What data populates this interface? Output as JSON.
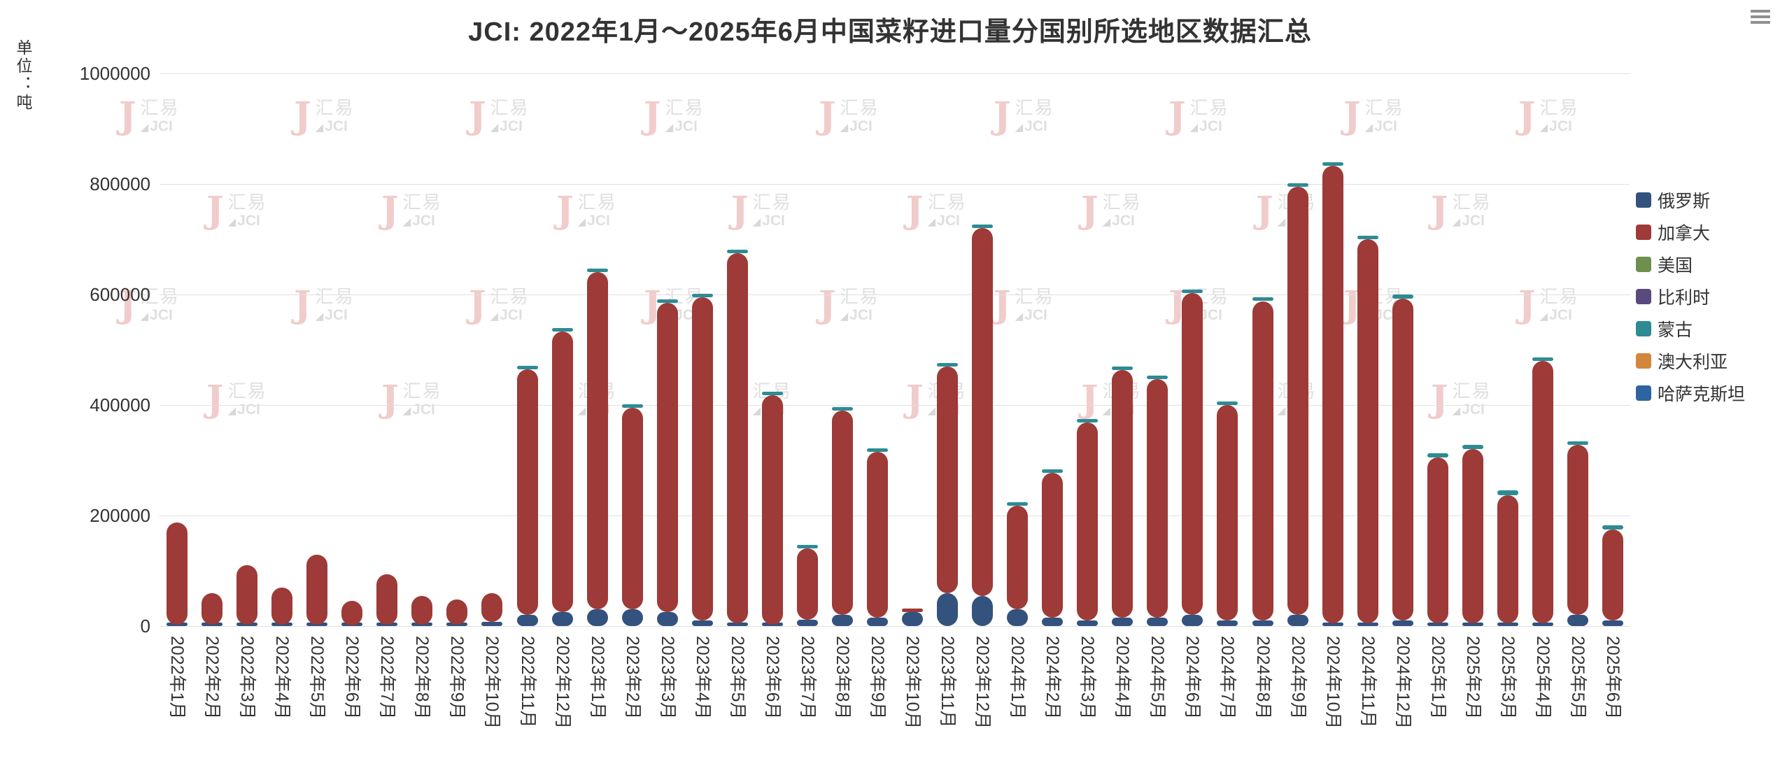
{
  "header": {
    "title": "JCI: 2022年1月～2025年6月中国菜籽进口量分国别所选地区数据汇总",
    "menu_icon": "hamburger-icon"
  },
  "y_axis": {
    "unit_label": "单位：吨"
  },
  "watermark": {
    "logo_letter": "J",
    "line1": "汇易",
    "line2": "JCI"
  },
  "chart_data": {
    "type": "bar",
    "stacked": true,
    "title": "JCI: 2022年1月～2025年6月中国菜籽进口量分国别所选地区数据汇总",
    "ylabel": "单位：吨",
    "xlabel": "",
    "ylim": [
      0,
      1000000
    ],
    "yticks": [
      0,
      200000,
      400000,
      600000,
      800000,
      1000000
    ],
    "grid": true,
    "legend_position": "right",
    "categories": [
      "2022年1月",
      "2022年2月",
      "2022年3月",
      "2022年4月",
      "2022年5月",
      "2022年6月",
      "2022年7月",
      "2022年8月",
      "2022年9月",
      "2022年10月",
      "2022年11月",
      "2022年12月",
      "2023年1月",
      "2023年2月",
      "2023年3月",
      "2023年4月",
      "2023年5月",
      "2023年6月",
      "2023年7月",
      "2023年8月",
      "2023年9月",
      "2023年10月",
      "2023年11月",
      "2023年12月",
      "2024年1月",
      "2024年2月",
      "2024年3月",
      "2024年4月",
      "2024年5月",
      "2024年6月",
      "2024年7月",
      "2024年8月",
      "2024年9月",
      "2024年10月",
      "2024年11月",
      "2024年12月",
      "2025年1月",
      "2025年2月",
      "2025年3月",
      "2025年4月",
      "2025年5月",
      "2025年6月"
    ],
    "series": [
      {
        "name": "俄罗斯",
        "color": "#33527e",
        "values": [
          3000,
          2000,
          2000,
          2000,
          2000,
          1000,
          2000,
          2000,
          2000,
          8000,
          20000,
          25000,
          30000,
          30000,
          25000,
          10000,
          5000,
          3000,
          12000,
          20000,
          15000,
          25000,
          60000,
          55000,
          30000,
          15000,
          10000,
          15000,
          15000,
          20000,
          10000,
          10000,
          20000,
          5000,
          5000,
          10000,
          5000,
          5000,
          5000,
          5000,
          20000,
          10000
        ]
      },
      {
        "name": "加拿大",
        "color": "#9e3a37",
        "values": [
          185000,
          58000,
          108000,
          68000,
          127000,
          44000,
          92000,
          53000,
          46000,
          52000,
          445000,
          508000,
          610000,
          365000,
          560000,
          585000,
          670000,
          415000,
          128000,
          370000,
          300000,
          2000,
          410000,
          665000,
          188000,
          262000,
          358000,
          448000,
          432000,
          582000,
          390000,
          578000,
          775000,
          828000,
          695000,
          582000,
          300000,
          315000,
          232000,
          475000,
          308000,
          165000
        ]
      },
      {
        "name": "美国",
        "color": "#6f8f4f",
        "values": [
          0,
          0,
          0,
          0,
          0,
          0,
          0,
          0,
          0,
          0,
          0,
          0,
          0,
          0,
          0,
          0,
          0,
          0,
          0,
          0,
          0,
          0,
          0,
          0,
          0,
          0,
          0,
          0,
          0,
          0,
          0,
          0,
          0,
          0,
          0,
          0,
          0,
          0,
          0,
          0,
          0,
          0
        ]
      },
      {
        "name": "比利时",
        "color": "#594a7d",
        "values": [
          0,
          0,
          0,
          0,
          0,
          0,
          0,
          0,
          0,
          0,
          0,
          0,
          0,
          0,
          0,
          0,
          0,
          0,
          0,
          0,
          0,
          0,
          0,
          0,
          0,
          0,
          0,
          0,
          0,
          0,
          0,
          0,
          0,
          0,
          0,
          0,
          0,
          0,
          0,
          0,
          0,
          0
        ]
      },
      {
        "name": "蒙古",
        "color": "#2e8b93",
        "values": [
          0,
          0,
          0,
          0,
          0,
          0,
          0,
          0,
          0,
          0,
          3000,
          4000,
          3000,
          6000,
          5000,
          6000,
          6000,
          3000,
          2000,
          3000,
          2000,
          0,
          5000,
          6000,
          3000,
          4000,
          4000,
          4000,
          3000,
          4000,
          3000,
          3000,
          4000,
          3000,
          3000,
          8000,
          8000,
          8000,
          8000,
          5000,
          3000,
          7000
        ]
      },
      {
        "name": "澳大利亚",
        "color": "#d4863b",
        "values": [
          0,
          0,
          0,
          0,
          0,
          0,
          0,
          0,
          0,
          0,
          0,
          0,
          0,
          0,
          0,
          0,
          0,
          0,
          0,
          0,
          0,
          0,
          0,
          0,
          0,
          0,
          0,
          0,
          0,
          0,
          0,
          0,
          0,
          0,
          0,
          0,
          0,
          0,
          0,
          0,
          0,
          0
        ]
      },
      {
        "name": "哈萨克斯坦",
        "color": "#2d64a0",
        "values": [
          0,
          0,
          0,
          0,
          0,
          0,
          0,
          0,
          0,
          0,
          0,
          0,
          0,
          0,
          0,
          0,
          0,
          0,
          0,
          0,
          0,
          0,
          0,
          0,
          0,
          0,
          0,
          0,
          0,
          0,
          0,
          0,
          0,
          0,
          0,
          0,
          0,
          0,
          0,
          0,
          0,
          0
        ]
      }
    ]
  }
}
